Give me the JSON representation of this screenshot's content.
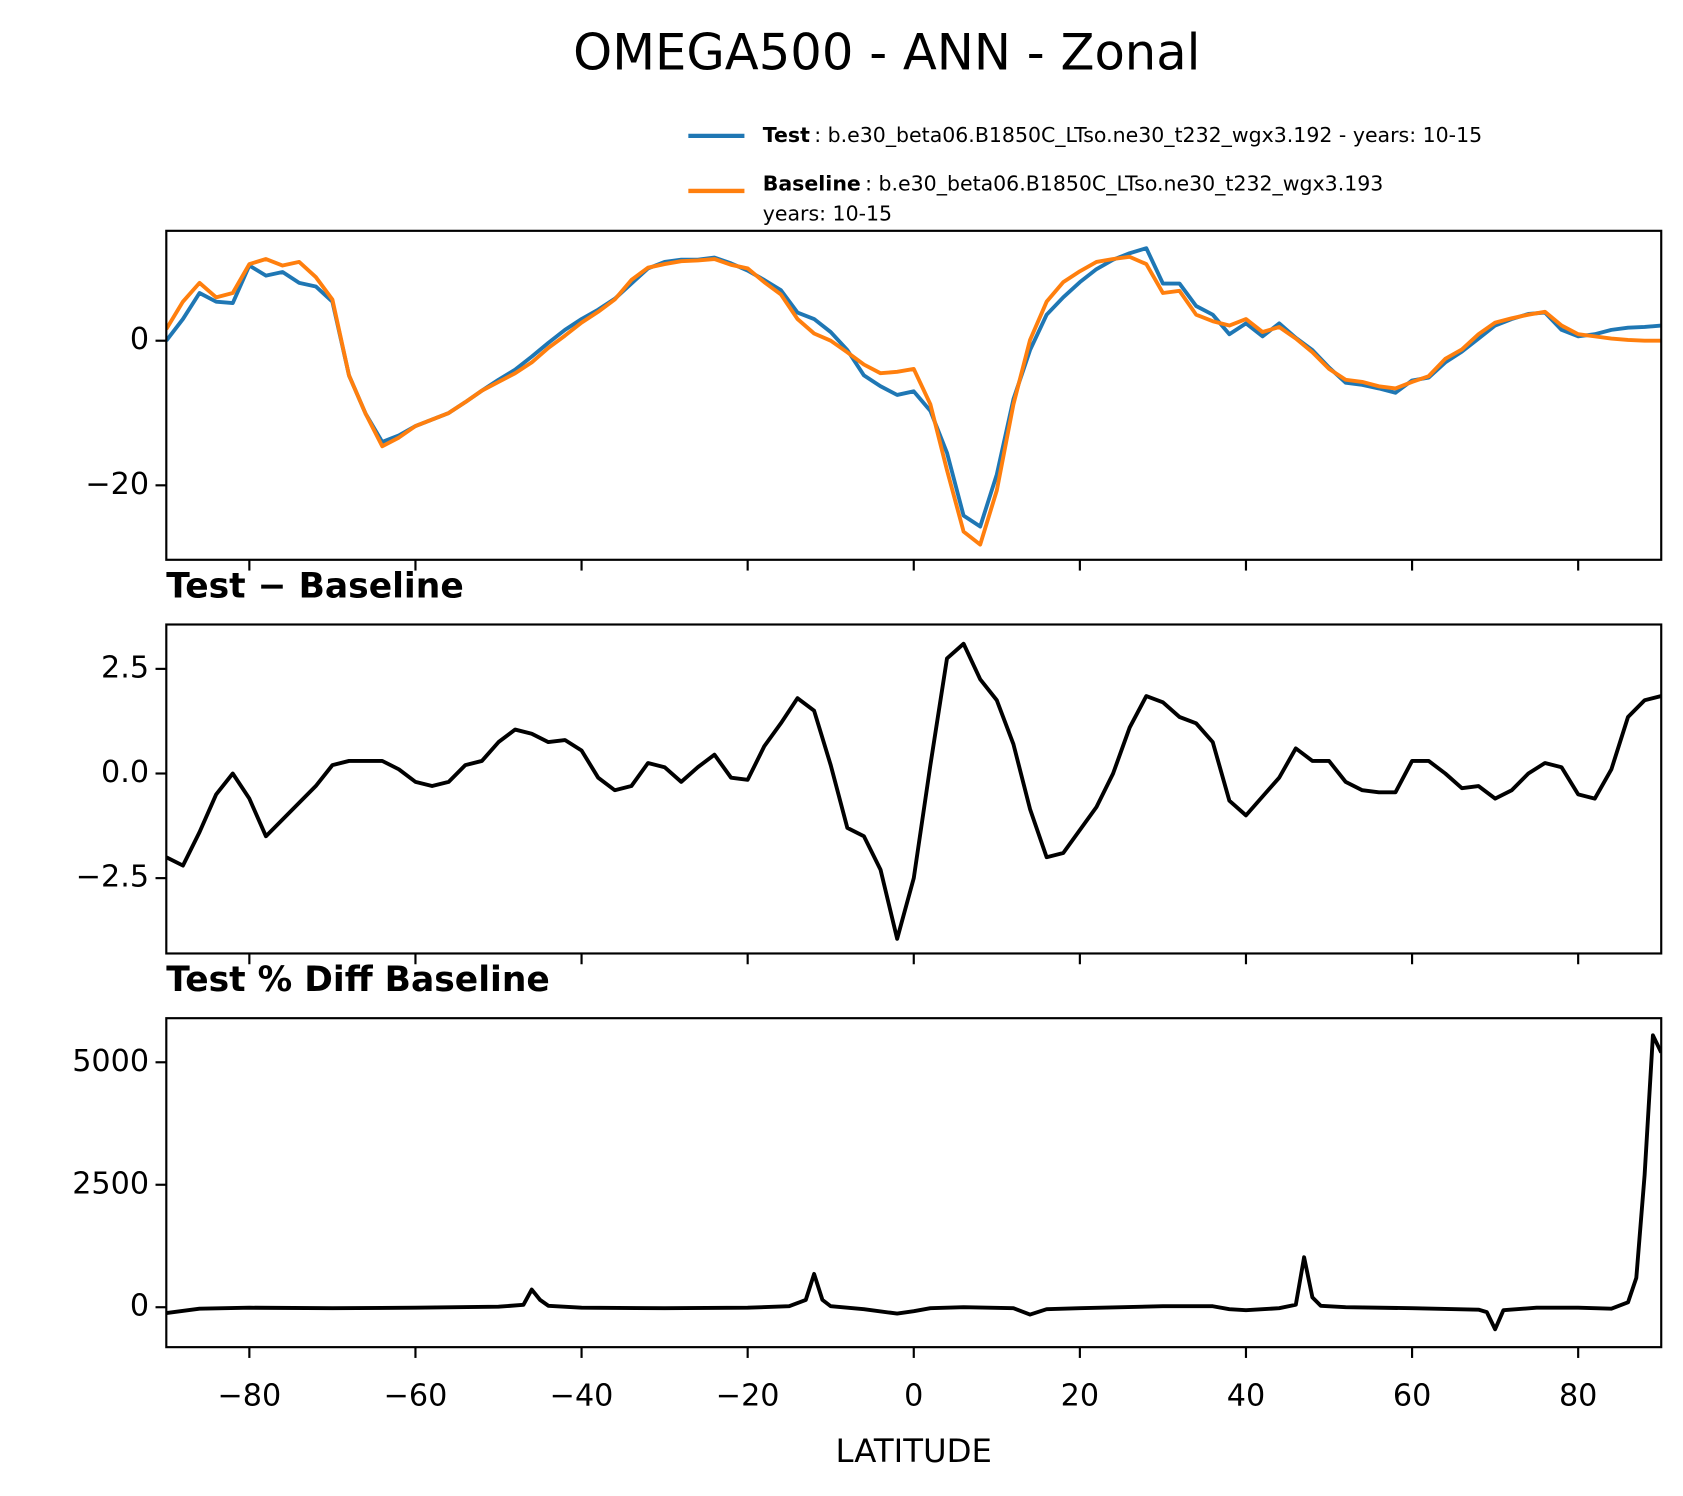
{
  "title": "OMEGA500 - ANN - Zonal",
  "chart_data": [
    {
      "type": "line",
      "x": [
        -90,
        -88,
        -86,
        -84,
        -82,
        -80,
        -78,
        -76,
        -74,
        -72,
        -70,
        -68,
        -66,
        -64,
        -62,
        -60,
        -58,
        -56,
        -54,
        -52,
        -50,
        -48,
        -46,
        -44,
        -42,
        -40,
        -38,
        -36,
        -34,
        -32,
        -30,
        -28,
        -26,
        -24,
        -22,
        -20,
        -18,
        -16,
        -14,
        -12,
        -10,
        -8,
        -6,
        -4,
        -2,
        0,
        2,
        4,
        6,
        8,
        10,
        12,
        14,
        16,
        18,
        20,
        22,
        24,
        26,
        28,
        30,
        32,
        34,
        36,
        38,
        40,
        42,
        44,
        46,
        48,
        50,
        52,
        54,
        56,
        58,
        60,
        62,
        64,
        66,
        68,
        70,
        72,
        74,
        76,
        78,
        80,
        82,
        84,
        86,
        88,
        90
      ],
      "series": [
        {
          "name": "Test",
          "color": "#1f77b4",
          "description": [
            ": b.e30_beta06.B1850C_LTso.ne30_t232_wgx3.192 - years: 10-15"
          ],
          "values": [
            0,
            3,
            6.6,
            5.4,
            5.2,
            10.4,
            9.0,
            9.5,
            8.0,
            7.5,
            5.4,
            -4.8,
            -10.1,
            -14.0,
            -13.1,
            -11.8,
            -10.9,
            -10.0,
            -8.5,
            -6.9,
            -5.4,
            -4.0,
            -2.2,
            -0.3,
            1.5,
            3.0,
            4.3,
            5.8,
            7.9,
            10.0,
            10.9,
            11.2,
            11.2,
            11.5,
            10.7,
            9.7,
            8.4,
            7.0,
            3.9,
            3.0,
            1.2,
            -1.3,
            -4.8,
            -6.3,
            -7.5,
            -7.0,
            -9.7,
            -15.5,
            -24.2,
            -25.7,
            -18.5,
            -8.1,
            -1.3,
            3.6,
            6.0,
            8.1,
            9.9,
            11.2,
            12.1,
            12.8,
            7.9,
            7.9,
            4.8,
            3.6,
            0.9,
            2.4,
            0.6,
            2.4,
            0.4,
            -1.3,
            -3.7,
            -5.8,
            -6.1,
            -6.6,
            -7.2,
            -5.5,
            -5.1,
            -3.0,
            -1.5,
            0.3,
            2.1,
            3.0,
            3.7,
            3.9,
            1.5,
            0.6,
            0.9,
            1.5,
            1.8,
            1.9,
            2.1
          ]
        },
        {
          "name": "Baseline",
          "color": "#ff7f0e",
          "description": [
            ": b.e30_beta06.B1850C_LTso.ne30_t232_wgx3.193",
            "years: 10-15"
          ],
          "values": [
            1.6,
            5.4,
            8,
            6,
            6.6,
            10.6,
            11.3,
            10.4,
            10.9,
            8.8,
            5.7,
            -4.8,
            -10.1,
            -14.6,
            -13.4,
            -11.8,
            -10.9,
            -10.0,
            -8.5,
            -6.9,
            -5.7,
            -4.5,
            -3.0,
            -1.0,
            0.7,
            2.5,
            4.0,
            5.7,
            8.4,
            10.1,
            10.6,
            11.0,
            11.1,
            11.3,
            10.5,
            10.0,
            8.1,
            6.4,
            3.0,
            1.0,
            0,
            -1.6,
            -3.3,
            -4.5,
            -4.3,
            -3.9,
            -8.8,
            -17.9,
            -26.4,
            -28.2,
            -20.7,
            -8.8,
            0.1,
            5.4,
            8.1,
            9.6,
            10.9,
            11.3,
            11.6,
            10.6,
            6.6,
            6.9,
            3.6,
            2.7,
            2.1,
            3.0,
            1.2,
            1.9,
            0.3,
            -1.6,
            -3.9,
            -5.4,
            -5.7,
            -6.3,
            -6.6,
            -5.7,
            -4.9,
            -2.5,
            -1.2,
            0.9,
            2.5,
            3.1,
            3.6,
            4.0,
            2.1,
            0.9,
            0.6,
            0.3,
            0.1,
            0,
            0
          ]
        }
      ],
      "ylim": [
        -30.3,
        15.2
      ],
      "yticks": [
        {
          "value": -20,
          "label": "−20"
        },
        0
      ]
    },
    {
      "type": "line",
      "title": "Test − Baseline",
      "x": [
        -90,
        -88,
        -86,
        -84,
        -82,
        -80,
        -78,
        -76,
        -74,
        -72,
        -70,
        -68,
        -66,
        -64,
        -62,
        -60,
        -58,
        -56,
        -54,
        -52,
        -50,
        -48,
        -46,
        -44,
        -42,
        -40,
        -38,
        -36,
        -34,
        -32,
        -30,
        -28,
        -26,
        -24,
        -22,
        -20,
        -18,
        -16,
        -14,
        -12,
        -10,
        -8,
        -6,
        -4,
        -2,
        0,
        2,
        4,
        6,
        8,
        10,
        12,
        14,
        16,
        18,
        20,
        22,
        24,
        26,
        28,
        30,
        32,
        34,
        36,
        38,
        40,
        42,
        44,
        46,
        48,
        50,
        52,
        54,
        56,
        58,
        60,
        62,
        64,
        66,
        68,
        70,
        72,
        74,
        76,
        78,
        80,
        82,
        84,
        86,
        88,
        90
      ],
      "series": [
        {
          "color": "#000000",
          "values": [
            -2.0,
            -2.2,
            -1.4,
            -0.5,
            0.0,
            -0.6,
            -1.5,
            -1.1,
            -0.7,
            -0.3,
            0.2,
            0.3,
            0.3,
            0.3,
            0.1,
            -0.2,
            -0.3,
            -0.2,
            0.2,
            0.3,
            0.75,
            1.05,
            0.95,
            0.75,
            0.8,
            0.55,
            -0.1,
            -0.4,
            -0.3,
            0.25,
            0.15,
            -0.2,
            0.15,
            0.45,
            -0.1,
            -0.15,
            0.65,
            1.2,
            1.8,
            1.5,
            0.2,
            -1.3,
            -1.5,
            -2.3,
            -3.95,
            -2.5,
            0.2,
            2.75,
            3.1,
            2.25,
            1.75,
            0.7,
            -0.85,
            -2.0,
            -1.9,
            -1.35,
            -0.8,
            0.0,
            1.1,
            1.85,
            1.7,
            1.35,
            1.2,
            0.75,
            -0.65,
            -1.0,
            -0.55,
            -0.1,
            0.6,
            0.3,
            0.3,
            -0.2,
            -0.4,
            -0.45,
            -0.45,
            0.3,
            0.3,
            0.0,
            -0.35,
            -0.3,
            -0.6,
            -0.4,
            0.0,
            0.25,
            0.15,
            -0.5,
            -0.6,
            0.1,
            1.35,
            1.75,
            1.85
          ]
        }
      ],
      "ylim": [
        -4.3,
        3.56
      ],
      "yticks": [
        {
          "value": -2.5,
          "label": "−2.5"
        },
        {
          "value": 0,
          "label": "0.0"
        },
        2.5
      ]
    },
    {
      "type": "line",
      "title": "Test % Diff Baseline",
      "x": [
        -90,
        -86,
        -80,
        -70,
        -60,
        -50,
        -47,
        -46,
        -45,
        -44,
        -40,
        -30,
        -20,
        -15,
        -13,
        -12,
        -11,
        -10,
        -6,
        -2,
        0,
        2,
        6,
        12,
        14,
        16,
        20,
        30,
        36,
        38,
        40,
        42,
        44,
        46,
        47,
        48,
        49,
        52,
        60,
        68,
        69,
        70,
        71,
        75,
        80,
        84,
        86,
        87,
        88,
        89,
        90
      ],
      "series": [
        {
          "color": "#000000",
          "values": [
            -120,
            -30,
            -10,
            -20,
            -10,
            10,
            50,
            360,
            150,
            30,
            -10,
            -20,
            -10,
            20,
            150,
            680,
            150,
            20,
            -40,
            -130,
            -80,
            -20,
            0,
            -20,
            -150,
            -40,
            -20,
            20,
            20,
            -40,
            -60,
            -40,
            -20,
            50,
            1020,
            200,
            30,
            0,
            -20,
            -50,
            -100,
            -450,
            -60,
            -10,
            -10,
            -30,
            100,
            600,
            2700,
            5550,
            5200
          ]
        }
      ],
      "ylim": [
        -815,
        5900
      ],
      "yticks": [
        0,
        2500,
        5000
      ],
      "xlim": [
        -90,
        90
      ],
      "xticks": [
        {
          "value": -80,
          "label": "−80"
        },
        {
          "value": -60,
          "label": "−60"
        },
        {
          "value": -40,
          "label": "−40"
        },
        {
          "value": -20,
          "label": "−20"
        },
        0,
        20,
        40,
        60,
        80
      ],
      "xlabel": "LATITUDE"
    }
  ]
}
